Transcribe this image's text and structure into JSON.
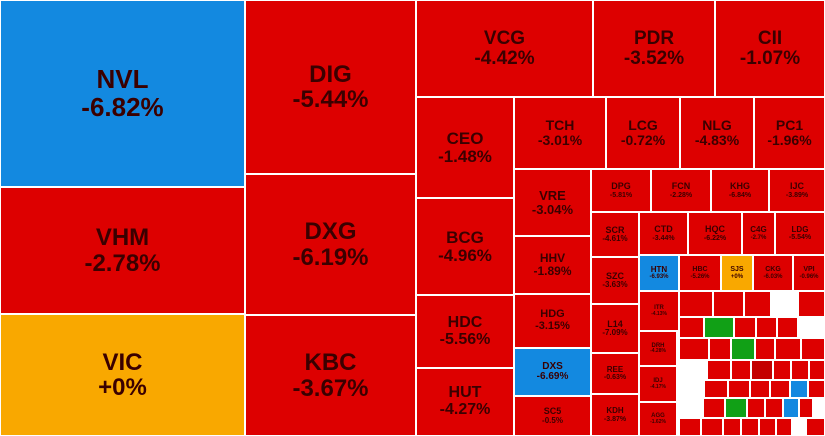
{
  "chart_data": {
    "type": "treemap",
    "colors": {
      "down": "#dd0000",
      "flat": "#f9a800",
      "floor": "#1389e0",
      "up": "#11a016",
      "text": "#3a0000"
    },
    "items": [
      {
        "ticker": "NVL",
        "change": "-6.82%",
        "status": "floor"
      },
      {
        "ticker": "VHM",
        "change": "-2.78%",
        "status": "down"
      },
      {
        "ticker": "VIC",
        "change": "+0%",
        "status": "flat"
      },
      {
        "ticker": "DIG",
        "change": "-5.44%",
        "status": "down"
      },
      {
        "ticker": "DXG",
        "change": "-6.19%",
        "status": "down"
      },
      {
        "ticker": "KBC",
        "change": "-3.67%",
        "status": "down"
      },
      {
        "ticker": "VCG",
        "change": "-4.42%",
        "status": "down"
      },
      {
        "ticker": "PDR",
        "change": "-3.52%",
        "status": "down"
      },
      {
        "ticker": "CII",
        "change": "-1.07%",
        "status": "down"
      },
      {
        "ticker": "CEO",
        "change": "-1.48%",
        "status": "down"
      },
      {
        "ticker": "BCG",
        "change": "-4.96%",
        "status": "down"
      },
      {
        "ticker": "HDC",
        "change": "-5.56%",
        "status": "down"
      },
      {
        "ticker": "HUT",
        "change": "-4.27%",
        "status": "down"
      },
      {
        "ticker": "TCH",
        "change": "-3.01%",
        "status": "down"
      },
      {
        "ticker": "LCG",
        "change": "-0.72%",
        "status": "down"
      },
      {
        "ticker": "NLG",
        "change": "-4.83%",
        "status": "down"
      },
      {
        "ticker": "PC1",
        "change": "-1.96%",
        "status": "down"
      },
      {
        "ticker": "VRE",
        "change": "-3.04%",
        "status": "down"
      },
      {
        "ticker": "HHV",
        "change": "-1.89%",
        "status": "down"
      },
      {
        "ticker": "HDG",
        "change": "-3.15%",
        "status": "down"
      },
      {
        "ticker": "DXS",
        "change": "-6.69%",
        "status": "floor"
      },
      {
        "ticker": "SC5",
        "change": "-0.5%",
        "status": "down"
      },
      {
        "ticker": "DPG",
        "change": "-5.81%",
        "status": "down"
      },
      {
        "ticker": "FCN",
        "change": "-2.28%",
        "status": "down"
      },
      {
        "ticker": "KHG",
        "change": "-6.84%",
        "status": "down"
      },
      {
        "ticker": "IJC",
        "change": "-3.89%",
        "status": "down"
      },
      {
        "ticker": "SCR",
        "change": "-4.61%",
        "status": "down"
      },
      {
        "ticker": "CTD",
        "change": "-3.44%",
        "status": "down"
      },
      {
        "ticker": "HQC",
        "change": "-6.22%",
        "status": "down"
      },
      {
        "ticker": "C4G",
        "change": "-2.7%",
        "status": "down"
      },
      {
        "ticker": "LDG",
        "change": "-5.54%",
        "status": "down"
      },
      {
        "ticker": "SZC",
        "change": "-3.63%",
        "status": "down"
      },
      {
        "ticker": "HTN",
        "change": "-6.93%",
        "status": "floor"
      },
      {
        "ticker": "HBC",
        "change": "-5.26%",
        "status": "down"
      },
      {
        "ticker": "SJS",
        "change": "+0%",
        "status": "flat"
      },
      {
        "ticker": "CKG",
        "change": "-6.03%",
        "status": "down"
      },
      {
        "ticker": "VPI",
        "change": "-0.96%",
        "status": "down"
      },
      {
        "ticker": "L14",
        "change": "-7.09%",
        "status": "down"
      },
      {
        "ticker": "ITR",
        "change": "-4.13%",
        "status": "down"
      },
      {
        "ticker": "REE",
        "change": "-0.63%",
        "status": "down"
      },
      {
        "ticker": "DRH",
        "change": "-4.28%",
        "status": "down"
      },
      {
        "ticker": "KDH",
        "change": "-3.87%",
        "status": "down"
      },
      {
        "ticker": "IDJ",
        "change": "-4.17%",
        "status": "down"
      },
      {
        "ticker": "AGG",
        "change": "-1.62%",
        "status": "down"
      }
    ]
  }
}
